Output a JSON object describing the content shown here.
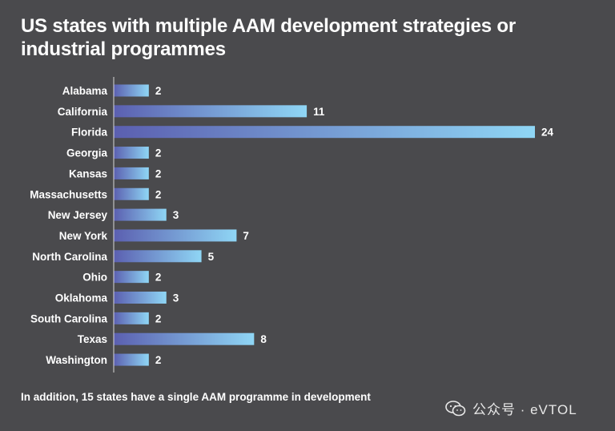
{
  "chart_data": {
    "type": "bar",
    "orientation": "horizontal",
    "title": "US states with multiple AAM development strategies or industrial programmes",
    "categories": [
      "Alabama",
      "California",
      "Florida",
      "Georgia",
      "Kansas",
      "Massachusetts",
      "New Jersey",
      "New York",
      "North Carolina",
      "Ohio",
      "Oklahoma",
      "South Carolina",
      "Texas",
      "Washington"
    ],
    "values": [
      2,
      11,
      24,
      2,
      2,
      2,
      3,
      7,
      5,
      2,
      3,
      2,
      8,
      2
    ],
    "xlabel": "",
    "ylabel": "",
    "xlim": [
      0,
      24
    ],
    "grid": false,
    "colors": {
      "bar_start": "#5b5fb0",
      "bar_end": "#8fd6f5",
      "axis": "#d8d8d8"
    }
  },
  "footnote": "In addition, 15 states have a single AAM programme in development",
  "watermark": {
    "icon": "wechat-icon",
    "text": "公众号 · eVTOL"
  }
}
